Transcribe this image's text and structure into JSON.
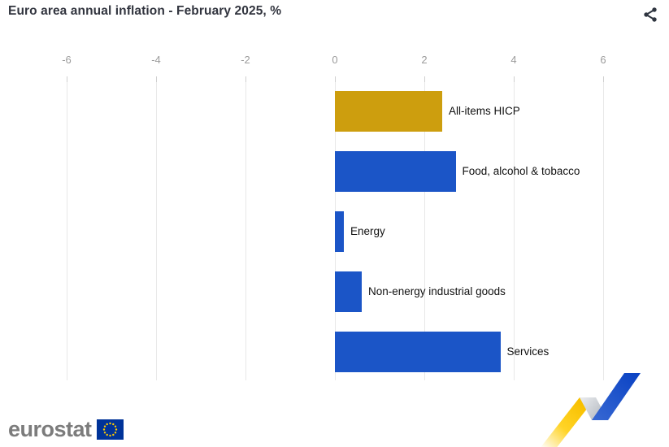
{
  "header": {
    "title": "Euro area annual inflation - February 2025, %"
  },
  "chart_data": {
    "type": "bar",
    "orientation": "horizontal",
    "title": "Euro area annual inflation - February 2025, %",
    "categories": [
      "All-items HICP",
      "Food, alcohol & tobacco",
      "Energy",
      "Non-energy industrial goods",
      "Services"
    ],
    "values": [
      2.4,
      2.7,
      0.2,
      0.6,
      3.7
    ],
    "unit": "%",
    "xlim": [
      -6,
      6
    ],
    "xticks": [
      -6,
      -4,
      -2,
      0,
      2,
      4,
      6
    ],
    "grid": true,
    "legend": false,
    "axis_position": "top",
    "bar_colors": [
      "#cd9e0e",
      "#1b55c7",
      "#1b55c7",
      "#1b55c7",
      "#1b55c7"
    ]
  },
  "footer": {
    "logo_text": "eurostat"
  },
  "icons": {
    "share": "share-icon",
    "eu_flag": "eu-flag-icon",
    "ribbon": "ribbon-zigzag-graphic"
  },
  "colors": {
    "accent_gold": "#cd9e0e",
    "accent_blue": "#1b55c7",
    "title_text": "#31343e",
    "axis_text": "#9b9b9b",
    "label_text": "#111111",
    "gridline": "#e8e8e8",
    "tick_mark": "#cfcfcf",
    "logo_text": "#7c7c7c",
    "eu_flag_blue": "#003399",
    "eu_flag_stars": "#ffcc00",
    "ribbon_yellow": "#ffcc00",
    "ribbon_gray": "#b9bdc3",
    "ribbon_blue": "#0c44c4"
  }
}
